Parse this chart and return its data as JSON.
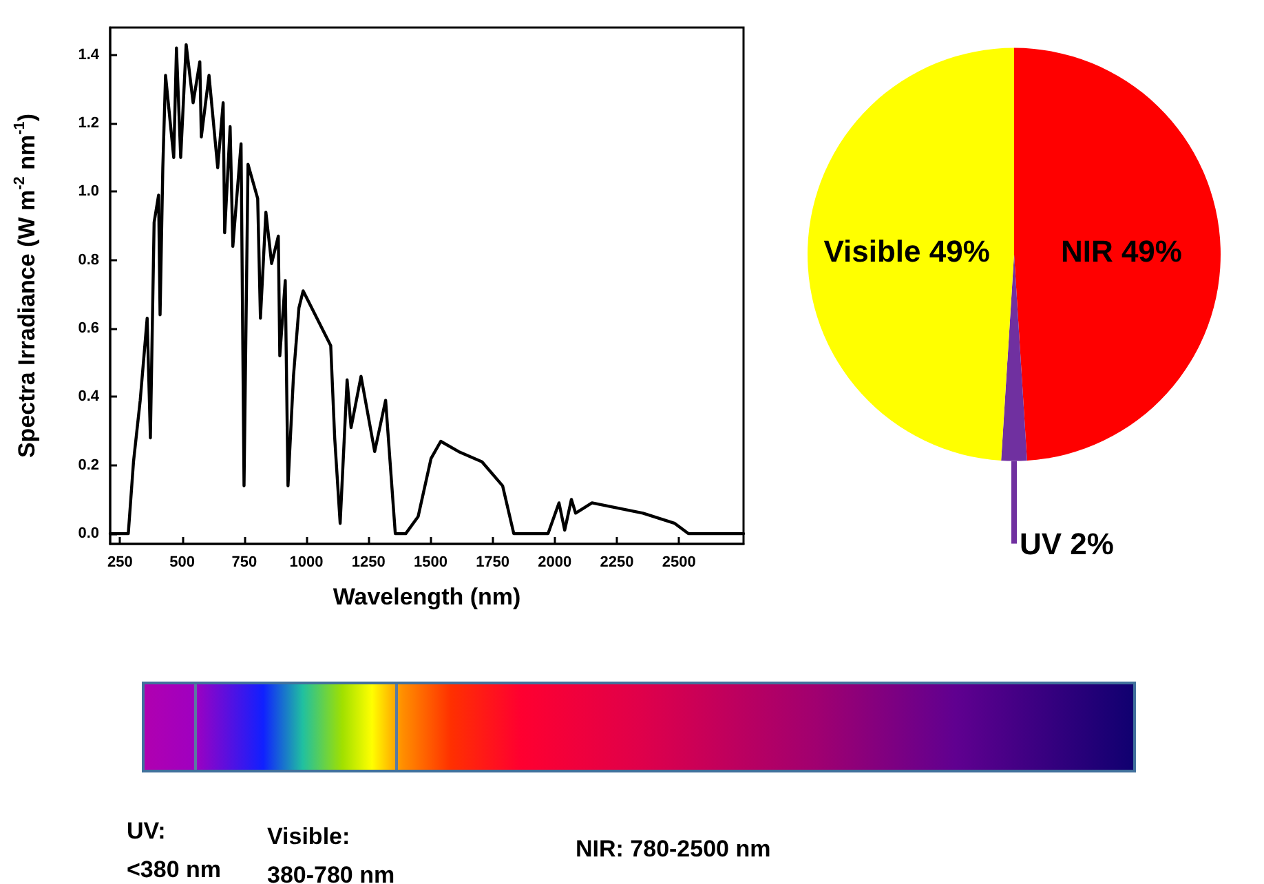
{
  "chart_data": [
    {
      "type": "line",
      "xlabel": "Wavelength (nm)",
      "ylabel": "Spectra Irradiance (W m$^{-2}$ nm$^{-1}$)",
      "xlim": [
        210,
        2760
      ],
      "ylim": [
        -0.03,
        1.48
      ],
      "xticks": [
        250,
        500,
        750,
        1000,
        1250,
        1500,
        1750,
        2000,
        2250,
        2500
      ],
      "yticks": [
        {
          "value": 0,
          "label": "0.0"
        },
        0.2,
        0.4,
        0.6,
        0.8,
        {
          "value": 1,
          "label": "1.0"
        },
        1.2,
        1.4
      ],
      "grid": false,
      "legend": false,
      "marker": "none",
      "line_style": "solid",
      "series": [
        {
          "color": "#000000",
          "x": [
            210,
            283,
            304,
            331,
            359,
            372,
            387,
            405,
            411,
            422,
            433,
            466,
            477,
            494,
            516,
            544,
            571,
            577,
            608,
            643,
            665,
            671,
            693,
            704,
            737,
            749,
            765,
            804,
            815,
            837,
            860,
            887,
            893,
            915,
            926,
            948,
            970,
            987,
            1098,
            1114,
            1136,
            1164,
            1180,
            1220,
            1275,
            1319,
            1358,
            1400,
            1450,
            1502,
            1541,
            1613,
            1707,
            1790,
            1835,
            1973,
            2017,
            2040,
            2067,
            2084,
            2150,
            2355,
            2483,
            2538,
            2760
          ],
          "values": [
            0,
            0,
            0.21,
            0.39,
            0.63,
            0.28,
            0.91,
            0.99,
            0.64,
            1.07,
            1.34,
            1.1,
            1.42,
            1.1,
            1.43,
            1.26,
            1.38,
            1.16,
            1.34,
            1.07,
            1.26,
            0.88,
            1.19,
            0.84,
            1.14,
            0.14,
            1.08,
            0.98,
            0.63,
            0.94,
            0.79,
            0.87,
            0.52,
            0.74,
            0.14,
            0.46,
            0.66,
            0.71,
            0.55,
            0.28,
            0.03,
            0.45,
            0.31,
            0.46,
            0.24,
            0.39,
            0,
            0,
            0.05,
            0.22,
            0.27,
            0.24,
            0.21,
            0.14,
            0,
            0,
            0.09,
            0.01,
            0.1,
            0.06,
            0.09,
            0.06,
            0.03,
            0,
            0
          ]
        }
      ]
    },
    {
      "type": "pie",
      "categories": [
        "NIR",
        "UV",
        "Visible"
      ],
      "values": [
        49,
        2,
        49
      ],
      "value_labels": [
        "49%",
        "2%",
        "49%"
      ],
      "colors": [
        "#ff0000",
        "#7030a0",
        "#ffff00"
      ],
      "legend": false
    },
    {
      "type": "other",
      "annotations": [
        "UV:\n<380 nm",
        "Visible:\n380-780 nm",
        "NIR: 780-2500 nm"
      ]
    }
  ]
}
